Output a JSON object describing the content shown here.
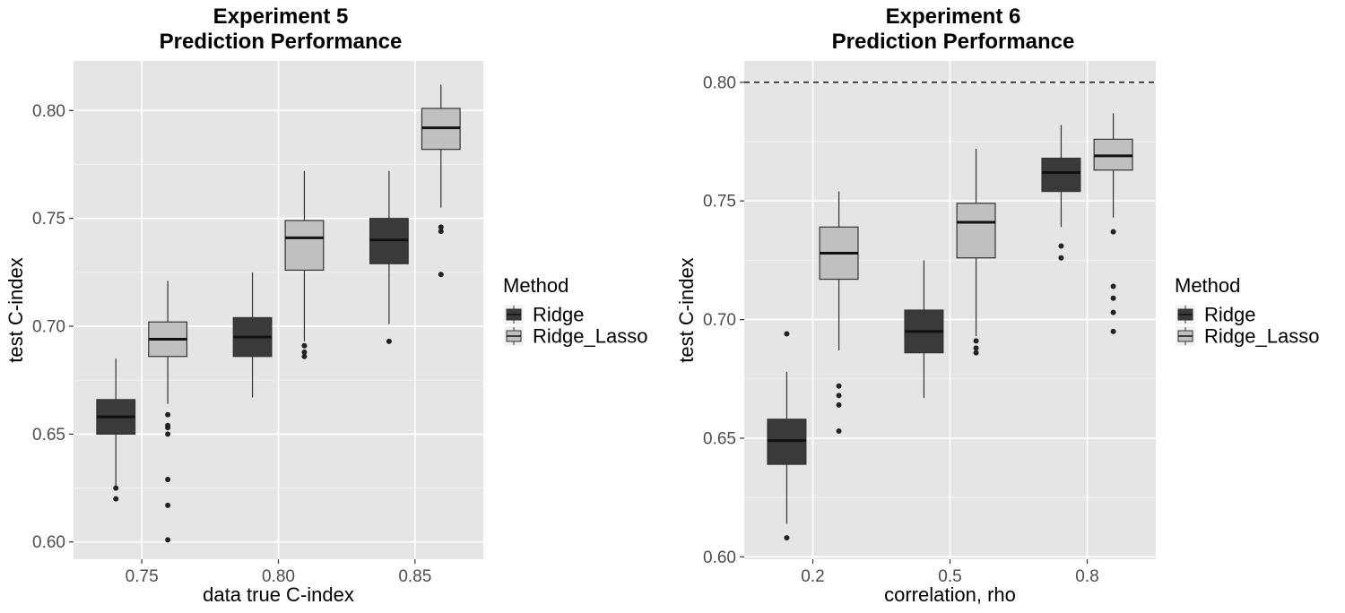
{
  "chart_data": [
    {
      "type": "boxplot",
      "title_lines": [
        "Experiment 5",
        "Prediction Performance"
      ],
      "xlabel": "data true C-index",
      "ylabel": "test C-index",
      "categories": [
        "0.75",
        "0.80",
        "0.85"
      ],
      "ylim": [
        0.592,
        0.823
      ],
      "yticks": [
        0.6,
        0.65,
        0.7,
        0.75,
        0.8
      ],
      "ytick_labels": [
        "0.60",
        "0.65",
        "0.70",
        "0.75",
        "0.80"
      ],
      "grid": true,
      "reference_line": null,
      "legend": {
        "title": "Method",
        "placement": "right",
        "entries": [
          {
            "name": "Ridge",
            "color": "#3a3a3a"
          },
          {
            "name": "Ridge_Lasso",
            "color": "#c0c0c0"
          }
        ]
      },
      "series": [
        {
          "name": "Ridge",
          "color": "#3a3a3a",
          "boxes": [
            {
              "min": 0.626,
              "q1": 0.65,
              "median": 0.658,
              "q3": 0.666,
              "max": 0.685,
              "outliers": [
                0.625,
                0.62
              ]
            },
            {
              "min": 0.667,
              "q1": 0.686,
              "median": 0.695,
              "q3": 0.704,
              "max": 0.725,
              "outliers": []
            },
            {
              "min": 0.701,
              "q1": 0.729,
              "median": 0.74,
              "q3": 0.75,
              "max": 0.772,
              "outliers": [
                0.693
              ]
            }
          ]
        },
        {
          "name": "Ridge_Lasso",
          "color": "#c0c0c0",
          "boxes": [
            {
              "min": 0.664,
              "q1": 0.686,
              "median": 0.694,
              "q3": 0.702,
              "max": 0.721,
              "outliers": [
                0.659,
                0.654,
                0.653,
                0.65,
                0.629,
                0.617,
                0.601
              ]
            },
            {
              "min": 0.693,
              "q1": 0.726,
              "median": 0.741,
              "q3": 0.749,
              "max": 0.772,
              "outliers": [
                0.691,
                0.688,
                0.686
              ]
            },
            {
              "min": 0.755,
              "q1": 0.782,
              "median": 0.792,
              "q3": 0.801,
              "max": 0.812,
              "outliers": [
                0.746,
                0.744,
                0.724
              ]
            }
          ]
        }
      ]
    },
    {
      "type": "boxplot",
      "title_lines": [
        "Experiment 6",
        "Prediction Performance"
      ],
      "xlabel": "correlation, rho",
      "ylabel": "test C-index",
      "categories": [
        "0.2",
        "0.5",
        "0.8"
      ],
      "ylim": [
        0.599,
        0.809
      ],
      "yticks": [
        0.6,
        0.65,
        0.7,
        0.75,
        0.8
      ],
      "ytick_labels": [
        "0.60",
        "0.65",
        "0.70",
        "0.75",
        "0.80"
      ],
      "grid": true,
      "reference_line": 0.8,
      "legend": {
        "title": "Method",
        "placement": "right",
        "entries": [
          {
            "name": "Ridge",
            "color": "#3a3a3a"
          },
          {
            "name": "Ridge_Lasso",
            "color": "#c0c0c0"
          }
        ]
      },
      "series": [
        {
          "name": "Ridge",
          "color": "#3a3a3a",
          "boxes": [
            {
              "min": 0.614,
              "q1": 0.639,
              "median": 0.649,
              "q3": 0.658,
              "max": 0.678,
              "outliers": [
                0.694,
                0.608
              ]
            },
            {
              "min": 0.667,
              "q1": 0.686,
              "median": 0.695,
              "q3": 0.704,
              "max": 0.725,
              "outliers": []
            },
            {
              "min": 0.739,
              "q1": 0.754,
              "median": 0.762,
              "q3": 0.768,
              "max": 0.782,
              "outliers": [
                0.731,
                0.726
              ]
            }
          ]
        },
        {
          "name": "Ridge_Lasso",
          "color": "#c0c0c0",
          "boxes": [
            {
              "min": 0.687,
              "q1": 0.717,
              "median": 0.728,
              "q3": 0.739,
              "max": 0.754,
              "outliers": [
                0.672,
                0.668,
                0.664,
                0.653
              ]
            },
            {
              "min": 0.693,
              "q1": 0.726,
              "median": 0.741,
              "q3": 0.749,
              "max": 0.772,
              "outliers": [
                0.691,
                0.688,
                0.686
              ]
            },
            {
              "min": 0.743,
              "q1": 0.763,
              "median": 0.769,
              "q3": 0.776,
              "max": 0.787,
              "outliers": [
                0.737,
                0.714,
                0.709,
                0.703,
                0.695
              ]
            }
          ]
        }
      ]
    }
  ]
}
